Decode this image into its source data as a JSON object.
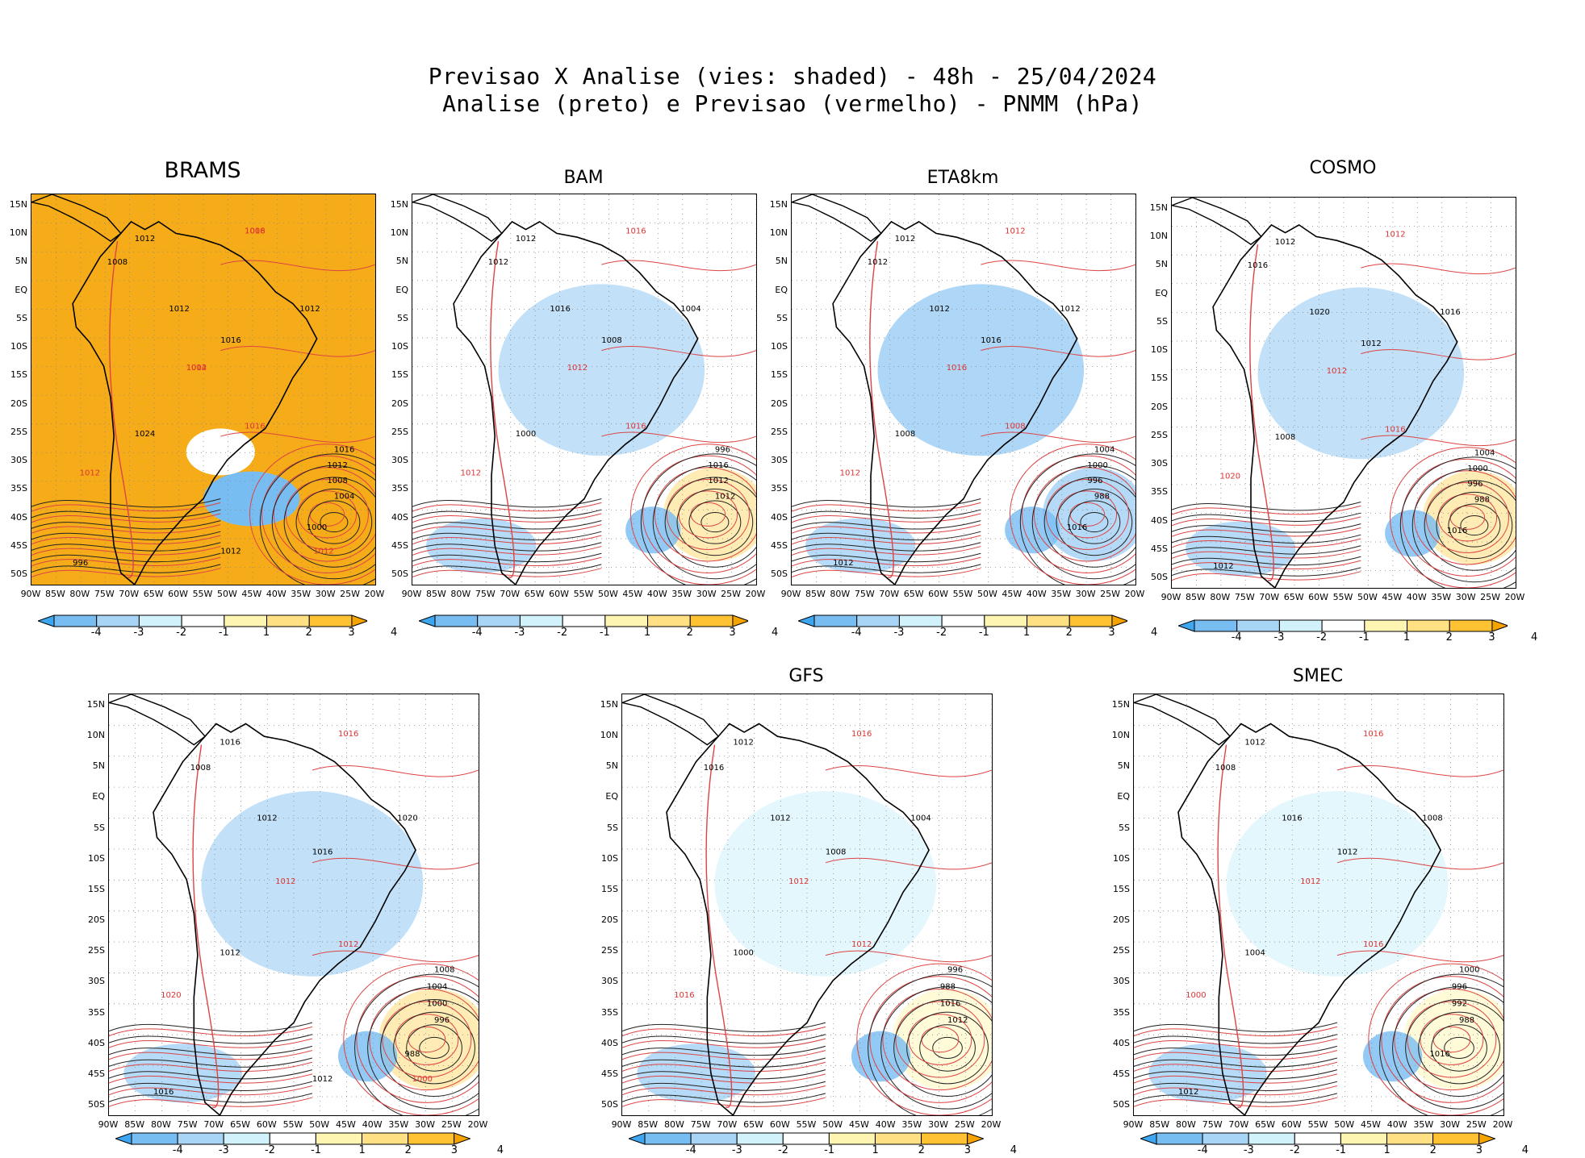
{
  "title": {
    "line1": "Previsao X Analise (vies: shaded) - 48h - 25/04/2024",
    "line2": "Analise (preto) e Previsao (vermelho) - PNMM (hPa)"
  },
  "axes": {
    "lat_labels": [
      "15N",
      "10N",
      "5N",
      "EQ",
      "5S",
      "10S",
      "15S",
      "20S",
      "25S",
      "30S",
      "35S",
      "40S",
      "45S",
      "50S"
    ],
    "lon_labels": [
      "90W",
      "85W",
      "80W",
      "75W",
      "70W",
      "65W",
      "60W",
      "55W",
      "50W",
      "45W",
      "40W",
      "35W",
      "30W",
      "25W",
      "20W"
    ]
  },
  "colorbar": {
    "labels": [
      "-4",
      "-3",
      "-2",
      "-1",
      "1",
      "2",
      "3",
      "4"
    ],
    "colors": [
      "#3ea6f0",
      "#78bdf2",
      "#a8d4f6",
      "#d2f2fb",
      "#ffffff",
      "#fff5b2",
      "#ffe082",
      "#ffc233",
      "#f5a300"
    ]
  },
  "panels": [
    {
      "name": "BRAMS",
      "bias": "warm-strong",
      "isobar_labels": [
        "1012",
        "1008",
        "1012",
        "1016",
        "1012",
        "1024",
        "1016",
        "1012",
        "1008",
        "1004",
        "1000",
        "996",
        "1012"
      ],
      "forecast_labels": [
        "1016",
        "1012",
        "1016",
        "1012",
        "1012",
        "1008",
        "1004"
      ]
    },
    {
      "name": "BAM",
      "bias": "mixed",
      "isobar_labels": [
        "1012",
        "1012",
        "1016",
        "1008",
        "1004",
        "1000",
        "996",
        "1016",
        "1012",
        "1012"
      ],
      "forecast_labels": [
        "1016",
        "1012",
        "1016",
        "1012"
      ]
    },
    {
      "name": "ETA8km",
      "bias": "cold",
      "isobar_labels": [
        "1012",
        "1012",
        "1012",
        "1016",
        "1012",
        "1008",
        "1004",
        "1000",
        "996",
        "988",
        "1016",
        "1012"
      ],
      "forecast_labels": [
        "1012",
        "1016",
        "1008",
        "1012"
      ]
    },
    {
      "name": "COSMO",
      "bias": "mixed",
      "isobar_labels": [
        "1012",
        "1016",
        "1020",
        "1012",
        "1016",
        "1008",
        "1004",
        "1000",
        "996",
        "988",
        "1016",
        "1012"
      ],
      "forecast_labels": [
        "1012",
        "1012",
        "1016",
        "1020"
      ]
    },
    {
      "name": "",
      "bias": "mixed",
      "isobar_labels": [
        "1016",
        "1008",
        "1012",
        "1016",
        "1020",
        "1012",
        "1008",
        "1004",
        "1000",
        "996",
        "988",
        "1016",
        "1012"
      ],
      "forecast_labels": [
        "1016",
        "1012",
        "1012",
        "1020",
        "1000"
      ]
    },
    {
      "name": "GFS",
      "bias": "light",
      "isobar_labels": [
        "1012",
        "1016",
        "1012",
        "1008",
        "1004",
        "1000",
        "996",
        "988",
        "1016",
        "1012"
      ],
      "forecast_labels": [
        "1016",
        "1012",
        "1012",
        "1016"
      ]
    },
    {
      "name": "SMEC",
      "bias": "light",
      "isobar_labels": [
        "1012",
        "1008",
        "1016",
        "1012",
        "1008",
        "1004",
        "1000",
        "996",
        "992",
        "988",
        "1016",
        "1012"
      ],
      "forecast_labels": [
        "1016",
        "1012",
        "1016",
        "1000"
      ]
    }
  ]
}
